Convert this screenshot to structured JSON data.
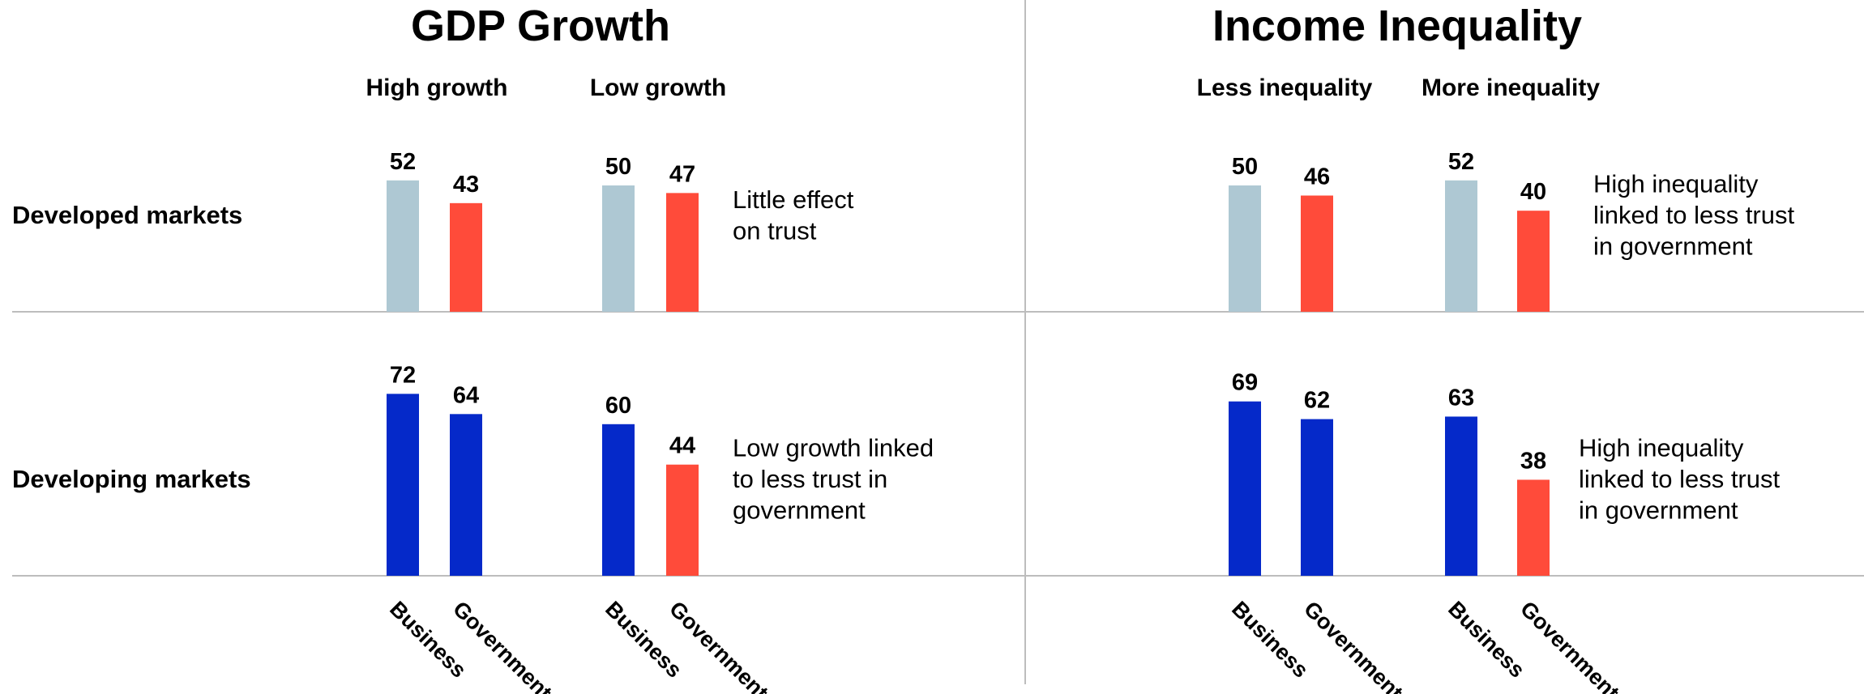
{
  "colors": {
    "business_developed": "#aec8d3",
    "government_developed": "#ff4b3a",
    "developing_blue": "#0529c9",
    "negative_red": "#ff4b3a",
    "divider": "#bdbdbd"
  },
  "chart_data": {
    "type": "bar",
    "row_labels": [
      "Developed markets",
      "Developing markets"
    ],
    "categories": [
      "Business",
      "Government"
    ],
    "panels": [
      {
        "title": "GDP Growth",
        "groups": [
          {
            "label": "High growth",
            "rows": [
              {
                "values": [
                  52,
                  43
                ],
                "colors": [
                  "#aec8d3",
                  "#ff4b3a"
                ]
              },
              {
                "values": [
                  72,
                  64
                ],
                "colors": [
                  "#0529c9",
                  "#0529c9"
                ]
              }
            ]
          },
          {
            "label": "Low growth",
            "rows": [
              {
                "values": [
                  50,
                  47
                ],
                "colors": [
                  "#aec8d3",
                  "#ff4b3a"
                ]
              },
              {
                "values": [
                  60,
                  44
                ],
                "colors": [
                  "#0529c9",
                  "#ff4b3a"
                ]
              }
            ]
          }
        ],
        "annotations": [
          [
            "Little effect",
            "on trust"
          ],
          [
            "Low growth linked",
            "to less trust in",
            "government"
          ]
        ]
      },
      {
        "title": "Income Inequality",
        "groups": [
          {
            "label": "Less inequality",
            "rows": [
              {
                "values": [
                  50,
                  46
                ],
                "colors": [
                  "#aec8d3",
                  "#ff4b3a"
                ]
              },
              {
                "values": [
                  69,
                  62
                ],
                "colors": [
                  "#0529c9",
                  "#0529c9"
                ]
              }
            ]
          },
          {
            "label": "More inequality",
            "rows": [
              {
                "values": [
                  52,
                  40
                ],
                "colors": [
                  "#aec8d3",
                  "#ff4b3a"
                ]
              },
              {
                "values": [
                  63,
                  38
                ],
                "colors": [
                  "#0529c9",
                  "#ff4b3a"
                ]
              }
            ]
          }
        ],
        "annotations": [
          [
            "High inequality",
            "linked to less trust",
            "in government"
          ],
          [
            "High inequality",
            "linked to less trust",
            "in government"
          ]
        ]
      }
    ]
  }
}
